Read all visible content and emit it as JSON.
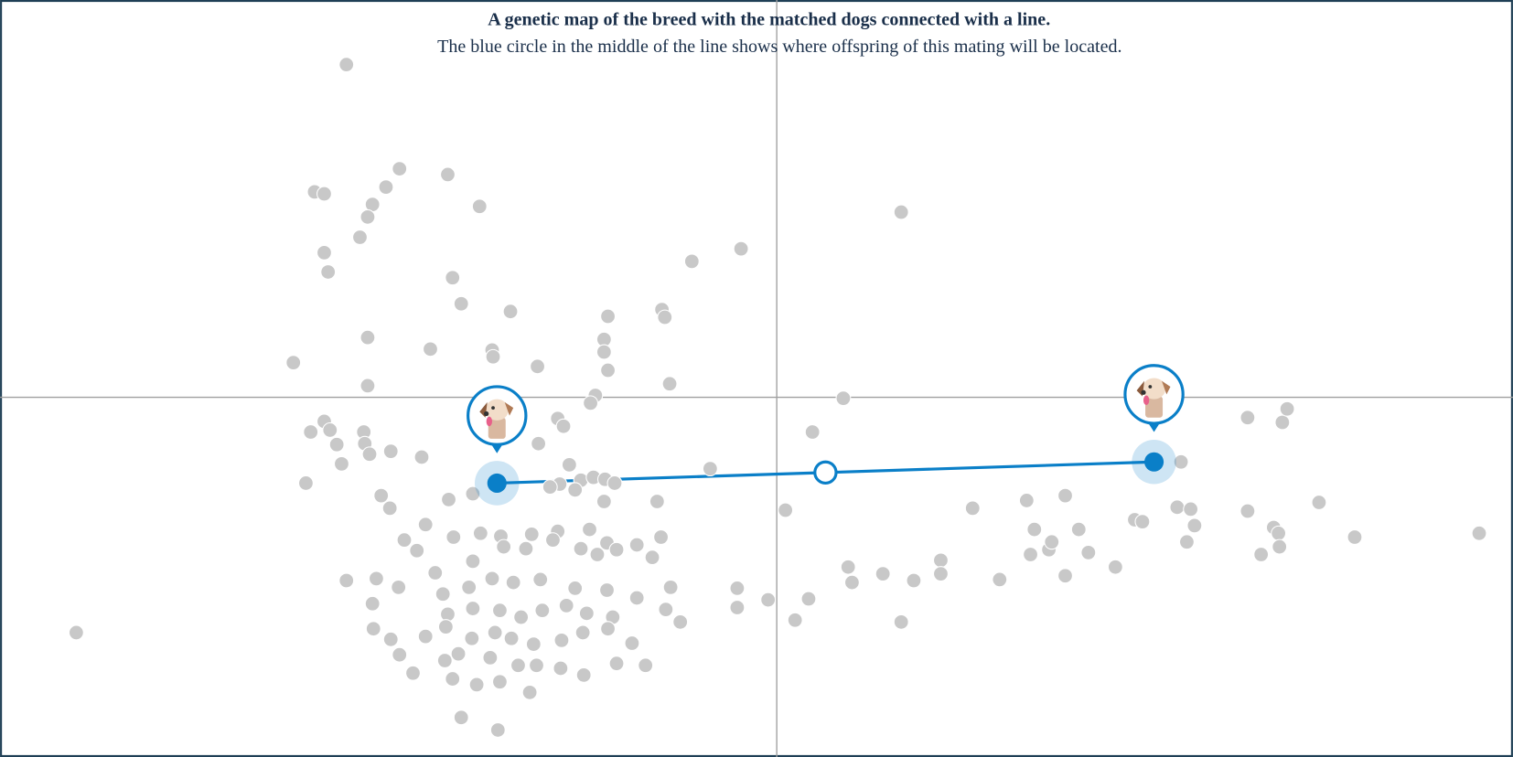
{
  "chart_data": {
    "type": "scatter",
    "title": "A genetic map of the breed with the matched dogs connected with a line.",
    "subtitle": "The blue circle in the middle of the line shows where offspring of this mating will be located.",
    "xlim": [
      -805,
      763
    ],
    "ylim": [
      -373,
      412
    ],
    "series": [
      {
        "color": "#c8c8c8",
        "x": [
          -446,
          -479,
          -469,
          -405,
          -391,
          -341,
          -419,
          -424,
          -308,
          -432,
          -469,
          -465,
          -336,
          -327,
          -276,
          -175,
          -119,
          -116,
          -88,
          -37,
          129,
          -424,
          -359,
          -295,
          -294,
          -179,
          -179,
          -175,
          -248,
          -501,
          -424,
          -111,
          -188,
          -193,
          69,
          -469,
          -483,
          -463,
          -456,
          -428,
          -427,
          -422,
          -400,
          -368,
          -227,
          -221,
          -247,
          -215,
          37,
          -69,
          -488,
          -451,
          -410,
          -401,
          -340,
          -315,
          -203,
          -190,
          -178,
          -168,
          -179,
          -209,
          -225,
          -235,
          -124,
          9,
          -364,
          -386,
          -373,
          -335,
          -307,
          -286,
          -254,
          -227,
          -194,
          -176,
          -120,
          -145,
          -129,
          -354,
          -315,
          -283,
          -260,
          -232,
          -203,
          -186,
          -166,
          -446,
          -415,
          -392,
          -419,
          -346,
          -319,
          -295,
          -273,
          -245,
          -209,
          -176,
          -145,
          -110,
          -341,
          -315,
          -287,
          -265,
          -243,
          -218,
          -197,
          -170,
          -115,
          -100,
          -418,
          -400,
          -364,
          -343,
          -316,
          -292,
          -275,
          -252,
          -223,
          -201,
          -175,
          -150,
          -391,
          -344,
          -330,
          -297,
          -268,
          -249,
          -224,
          -200,
          -166,
          -136,
          -377,
          -336,
          -311,
          -287,
          -256,
          -327,
          -289,
          -726,
          -41,
          -41,
          -9,
          33,
          19,
          74,
          78,
          110,
          142,
          170,
          170,
          129,
          203,
          231,
          259,
          267,
          263,
          282,
          299,
          285,
          313,
          323,
          299,
          351,
          371,
          379,
          415,
          429,
          433,
          425,
          419,
          488,
          524,
          529,
          488,
          515,
          520,
          521,
          502,
          562,
          599,
          728
        ],
        "y": [
          345,
          213,
          211,
          218,
          237,
          231,
          200,
          187,
          198,
          166,
          150,
          130,
          124,
          97,
          89,
          84,
          91,
          83,
          141,
          154,
          192,
          62,
          50,
          49,
          42,
          60,
          47,
          28,
          32,
          36,
          12,
          14,
          2,
          -6,
          -1,
          -25,
          -36,
          -34,
          -49,
          -36,
          -48,
          -59,
          -56,
          -62,
          -22,
          -30,
          -48,
          -70,
          -36,
          -74,
          -89,
          -69,
          -102,
          -115,
          -106,
          -100,
          -86,
          -83,
          -85,
          -89,
          -108,
          -96,
          -90,
          -93,
          -108,
          -117,
          -132,
          -148,
          -159,
          -145,
          -141,
          -144,
          -142,
          -139,
          -137,
          -151,
          -145,
          -153,
          -166,
          -182,
          -170,
          -155,
          -157,
          -148,
          -157,
          -163,
          -158,
          -190,
          -188,
          -197,
          -214,
          -204,
          -197,
          -188,
          -192,
          -189,
          -198,
          -200,
          -208,
          -197,
          -225,
          -219,
          -221,
          -228,
          -221,
          -216,
          -224,
          -228,
          -220,
          -233,
          -240,
          -251,
          -248,
          -238,
          -250,
          -244,
          -250,
          -256,
          -252,
          -244,
          -240,
          -255,
          -267,
          -273,
          -266,
          -270,
          -278,
          -278,
          -281,
          -288,
          -276,
          -278,
          -286,
          -292,
          -298,
          -295,
          -306,
          -332,
          -345,
          -244,
          -198,
          -218,
          -210,
          -209,
          -231,
          -176,
          -192,
          -183,
          -190,
          -169,
          -183,
          -233,
          -115,
          -189,
          -107,
          -137,
          -163,
          -158,
          -102,
          -150,
          -137,
          -161,
          -185,
          -176,
          -127,
          -129,
          -114,
          -116,
          -133,
          -150,
          -67,
          -21,
          -26,
          -12,
          -118,
          -135,
          -141,
          -155,
          -163,
          -109,
          -145,
          -141
        ]
      },
      {
        "color": "#0a7fc8",
        "connected": true,
        "x": [
          -290,
          391
        ],
        "y": [
          -89,
          -67
        ]
      },
      {
        "color": "#0a7fc8",
        "hollow": true,
        "x": [
          50.5
        ],
        "y": [
          -78
        ]
      }
    ]
  }
}
